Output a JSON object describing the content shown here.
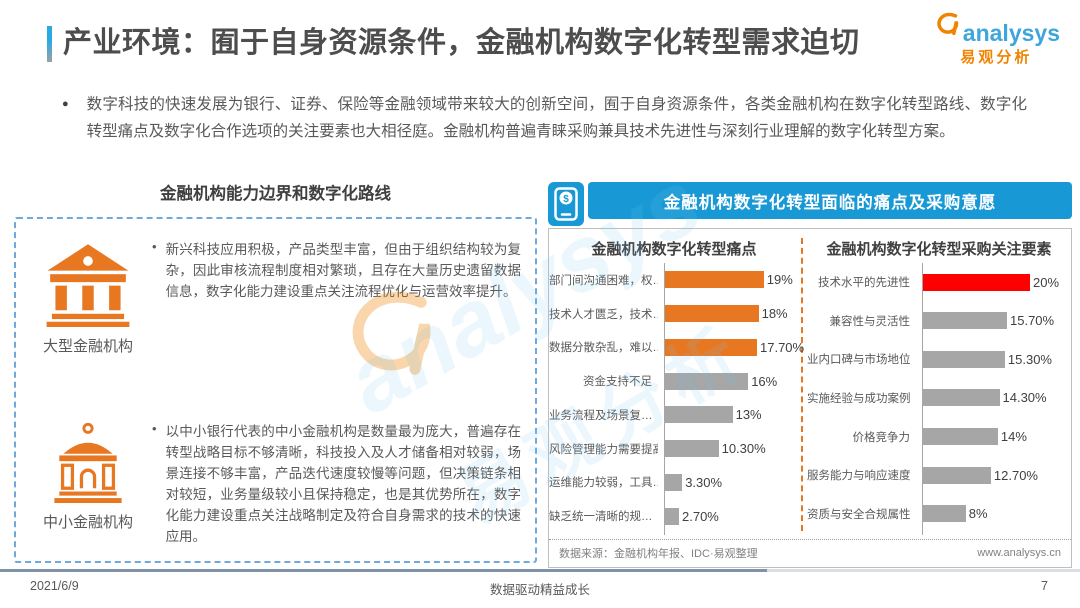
{
  "header": {
    "title": "产业环境：囿于自身资源条件，金融机构数字化转型需求迫切",
    "logo_brand": "analysys",
    "logo_brand_cn": "易观分析",
    "logo_swirl_icon": "analysys-swirl-icon"
  },
  "intro": {
    "bullet_char": "●",
    "text": "数字科技的快速发展为银行、证券、保险等金融领域带来较大的创新空间，囿于自身资源条件，各类金融机构在数字化转型路线、数字化转型痛点及数字化合作选项的关注要素也大相径庭。金融机构普遍青睐采购兼具技术先进性与深刻行业理解的数字化转型方案。"
  },
  "left_panel": {
    "title": "金融机构能力边界和数字化路线",
    "bullet_char": "•",
    "items": [
      {
        "icon": "classical-bank-icon",
        "label": "大型金融机构",
        "text": "新兴科技应用积极，产品类型丰富，但由于组织结构较为复杂，因此审核流程制度相对繁琐，且存在大量历史遗留数据信息，数字化能力建设重点关注流程优化与运营效率提升。"
      },
      {
        "icon": "dome-bank-icon",
        "label": "中小金融机构",
        "text": "以中小银行代表的中小金融机构是数量最为庞大，普遍存在转型战略目标不够清晰，科技投入及人才储备相对较弱，场景连接不够丰富，产品迭代速度较慢等问题，但决策链条相对较短，业务量级较小且保持稳定，也是其优势所在，数字化能力建设重点关注战略制定及符合自身需求的技术的快速应用。"
      }
    ]
  },
  "right_panel": {
    "banner_icon": "mobile-payment-icon",
    "banner_title": "金融机构数字化转型面临的痛点及采购意愿",
    "source_left": "数据来源：金融机构年报、IDC·易观整理",
    "source_right": "www.analysys.cn"
  },
  "chart_data": [
    {
      "type": "bar",
      "orientation": "horizontal",
      "title": "金融机构数字化转型痛点",
      "categories": [
        "部门间沟通困难，权…",
        "技术人才匮乏，技术…",
        "数据分散杂乱，难以…",
        "资金支持不足",
        "业务流程及场景复…",
        "风险管理能力需要提高",
        "运维能力较弱，工具…",
        "缺乏统一清晰的规…"
      ],
      "values": [
        19,
        18,
        17.7,
        16,
        13,
        10.3,
        3.3,
        2.7
      ],
      "labels": [
        "19%",
        "18%",
        "17.70%",
        "16%",
        "13%",
        "10.30%",
        "3.30%",
        "2.70%"
      ],
      "bar_colors": [
        "#E87722",
        "#E87722",
        "#E87722",
        "#A6A6A6",
        "#A6A6A6",
        "#A6A6A6",
        "#A6A6A6",
        "#A6A6A6"
      ],
      "xlim": [
        0,
        20
      ],
      "grid": false,
      "legend": false
    },
    {
      "type": "bar",
      "orientation": "horizontal",
      "title": "金融机构数字化转型采购关注要素",
      "categories": [
        "技术水平的先进性",
        "兼容性与灵活性",
        "业内口碑与市场地位",
        "实施经验与成功案例",
        "价格竞争力",
        "服务能力与响应速度",
        "资质与安全合规属性"
      ],
      "values": [
        20,
        15.7,
        15.3,
        14.3,
        14,
        12.7,
        8
      ],
      "labels": [
        "20%",
        "15.70%",
        "15.30%",
        "14.30%",
        "14%",
        "12.70%",
        "8%"
      ],
      "bar_colors": [
        "#FE0000",
        "#A6A6A6",
        "#A6A6A6",
        "#A6A6A6",
        "#A6A6A6",
        "#A6A6A6",
        "#A6A6A6"
      ],
      "xlim": [
        0,
        20
      ],
      "grid": false,
      "legend": false
    }
  ],
  "watermark": {
    "text_script": "analysys",
    "text_cn": "易观分析"
  },
  "footer": {
    "date": "2021/6/9",
    "center": "数据驱动精益成长",
    "page": "7"
  },
  "colors": {
    "accent_blue": "#1899D6",
    "orange": "#E87722",
    "red": "#FE0000",
    "gray_bar": "#A6A6A6",
    "dashed_border_blue": "#6FA8DC",
    "logo_blue": "#3FA5DC",
    "logo_orange": "#F08300"
  }
}
